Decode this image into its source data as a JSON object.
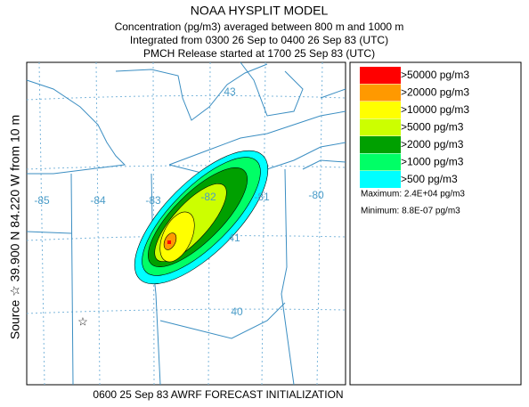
{
  "header": {
    "title": "NOAA HYSPLIT MODEL",
    "lines": [
      "Concentration  (pg/m3) averaged between   800 m and  1000 m",
      "Integrated from 0300 26 Sep to 0400 26 Sep 83 (UTC)",
      "PMCH Release started at 1700 25 Sep 83 (UTC)"
    ]
  },
  "source_label": "Source ☆ 39.900  N  84.220  W   from  10 m",
  "footer": "0600 25 Sep 83 AWRF FORECAST INITIALIZATION",
  "map": {
    "lon_labels": [
      "-85",
      "-84",
      "-83",
      "-82",
      "-81",
      "-80"
    ],
    "lat_labels": [
      "43",
      "41",
      "40"
    ]
  },
  "legend": {
    "items": [
      {
        "label": ">50000 pg/m3",
        "color": "#ff0000"
      },
      {
        "label": ">20000 pg/m3",
        "color": "#ff9900"
      },
      {
        "label": ">10000 pg/m3",
        "color": "#ffff00"
      },
      {
        "label": ">5000 pg/m3",
        "color": "#ccff00"
      },
      {
        "label": ">2000 pg/m3",
        "color": "#00a000"
      },
      {
        "label": ">1000 pg/m3",
        "color": "#00ff66"
      },
      {
        "label": ">500 pg/m3",
        "color": "#00ffff"
      }
    ],
    "maximum": "Maximum: 2.4E+04 pg/m3",
    "minimum": "Minimum: 8.8E-07 pg/m3"
  }
}
